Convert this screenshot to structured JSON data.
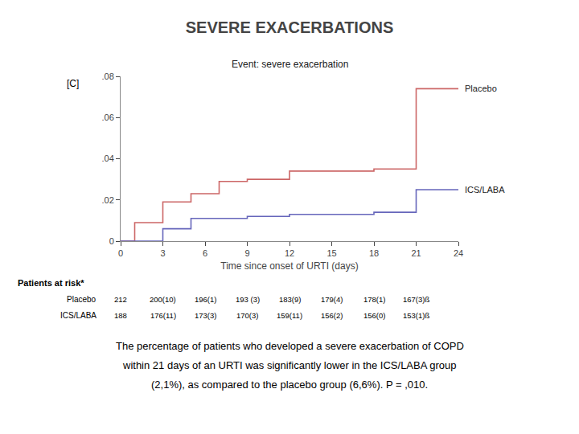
{
  "chart_data": {
    "type": "step",
    "title": "SEVERE EXACERBATIONS",
    "subtitle": "Event: severe exacerbation",
    "panel_label": "[C]",
    "xlabel": "Time since onset of URTI (days)",
    "xlim": [
      0,
      24
    ],
    "ylim": [
      0,
      0.08
    ],
    "xticks": [
      0,
      3,
      6,
      9,
      12,
      15,
      18,
      21,
      24
    ],
    "yticks": [
      0,
      {
        "value": 0.02,
        "label": ".02"
      },
      {
        "value": 0.04,
        "label": ".04"
      },
      {
        "value": 0.06,
        "label": ".06"
      },
      {
        "value": 0.08,
        "label": ".08"
      }
    ],
    "grid": false,
    "series": [
      {
        "name": "Placebo",
        "color": "#cc6666",
        "x": [
          0,
          1,
          1,
          3,
          3,
          5,
          5,
          7,
          7,
          9,
          9,
          12,
          12,
          18,
          18,
          21,
          21,
          24
        ],
        "values": [
          0,
          0,
          0.009,
          0.009,
          0.019,
          0.019,
          0.023,
          0.023,
          0.029,
          0.029,
          0.03,
          0.03,
          0.034,
          0.034,
          0.035,
          0.035,
          0.074,
          0.074
        ]
      },
      {
        "name": "ICS/LABA",
        "color": "#6666bb",
        "x": [
          0,
          3,
          3,
          5,
          5,
          9,
          9,
          12,
          12,
          18,
          18,
          21,
          21,
          24
        ],
        "values": [
          0,
          0,
          0.006,
          0.006,
          0.011,
          0.011,
          0.012,
          0.012,
          0.013,
          0.013,
          0.014,
          0.014,
          0.025,
          0.025
        ]
      }
    ],
    "risk_table": {
      "header": "Patients at risk*",
      "x": [
        0,
        3,
        6,
        9,
        12,
        15,
        18,
        21
      ],
      "rows": [
        {
          "name": "Placebo",
          "values": [
            "212",
            "200(10)",
            "196(1)",
            "193 (3)",
            "183(9)",
            "179(4)",
            "178(1)",
            "167(3)ß"
          ]
        },
        {
          "name": "ICS/LABA",
          "values": [
            "188",
            "176(11)",
            "173(3)",
            "170(3)",
            "159(11)",
            "156(2)",
            "156(0)",
            "153(1)ß"
          ]
        }
      ]
    },
    "footnote": [
      "The percentage of patients who developed a severe exacerbation of COPD",
      "within 21 days of an URTI was significantly lower in the ICS/LABA group",
      "(2,1%), as compared to the placebo group (6,6%). P = ,010."
    ]
  }
}
